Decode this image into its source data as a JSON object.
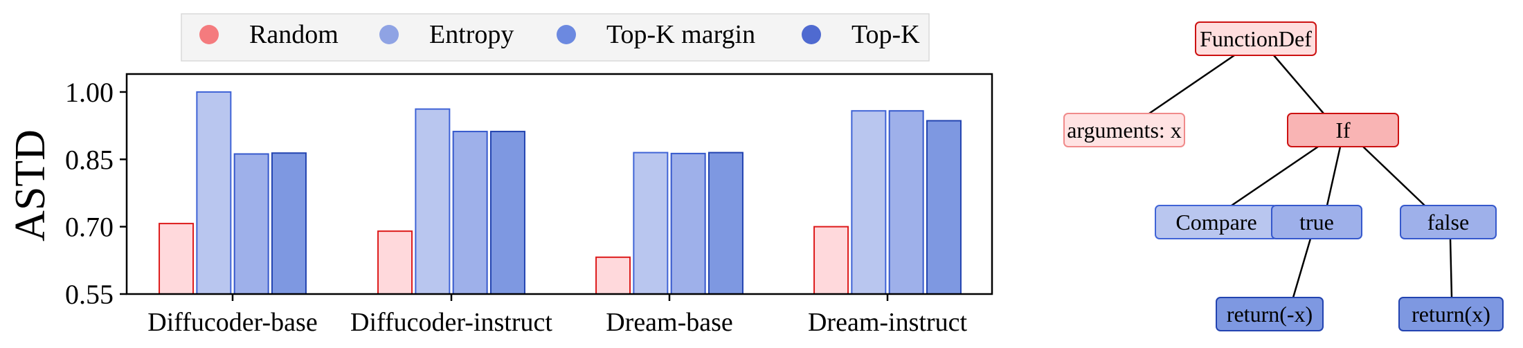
{
  "chart_data": {
    "type": "bar",
    "title": "",
    "xlabel": "",
    "ylabel": "ASTD",
    "categories": [
      "Diffucoder-base",
      "Diffucoder-instruct",
      "Dream-base",
      "Dream-instruct"
    ],
    "series": [
      {
        "name": "Random",
        "values": [
          0.707,
          0.69,
          0.632,
          0.7
        ]
      },
      {
        "name": "Entropy",
        "values": [
          1.0,
          0.962,
          0.865,
          0.958
        ]
      },
      {
        "name": "Top-K margin",
        "values": [
          0.862,
          0.912,
          0.863,
          0.958
        ]
      },
      {
        "name": "Top-K",
        "values": [
          0.864,
          0.912,
          0.865,
          0.936
        ]
      }
    ],
    "ylim": [
      0.55,
      1.04
    ],
    "yticks": [
      "0.55",
      "0.70",
      "0.85",
      "1.00"
    ],
    "grid": false,
    "legend_position": "top"
  },
  "style": {
    "series_fill": [
      "#ffd9dc",
      "#b9c6ef",
      "#9eb0ea",
      "#7e98e1"
    ],
    "series_stroke": [
      "#dd1a1a",
      "#3f63d6",
      "#3558cc",
      "#2243b0"
    ],
    "legend_marker": [
      "#f47b7e",
      "#8fa3e4",
      "#6c89e0",
      "#4f6ad0"
    ]
  },
  "tree": {
    "nodes": [
      {
        "id": "functiondef",
        "label": "FunctionDef",
        "fill": "#ffdede",
        "stroke": "#cc1111"
      },
      {
        "id": "arguments",
        "label": "arguments: x",
        "fill": "#ffe3e3",
        "stroke": "#f08a8a"
      },
      {
        "id": "if",
        "label": "If",
        "fill": "#f9b4b4",
        "stroke": "#cc1111"
      },
      {
        "id": "compare",
        "label": "Compare",
        "fill": "#b9c6ef",
        "stroke": "#3f63d6"
      },
      {
        "id": "true",
        "label": "true",
        "fill": "#9eb0ea",
        "stroke": "#3558cc"
      },
      {
        "id": "false",
        "label": "false",
        "fill": "#9eb0ea",
        "stroke": "#3558cc"
      },
      {
        "id": "return-neg",
        "label": "return(-x)",
        "fill": "#7e98e1",
        "stroke": "#2243b0"
      },
      {
        "id": "return-pos",
        "label": "return(x)",
        "fill": "#7e98e1",
        "stroke": "#2243b0"
      }
    ],
    "edges": [
      [
        "functiondef",
        "arguments"
      ],
      [
        "functiondef",
        "if"
      ],
      [
        "if",
        "compare"
      ],
      [
        "if",
        "true"
      ],
      [
        "if",
        "false"
      ],
      [
        "true",
        "return-neg"
      ],
      [
        "false",
        "return-pos"
      ]
    ]
  }
}
